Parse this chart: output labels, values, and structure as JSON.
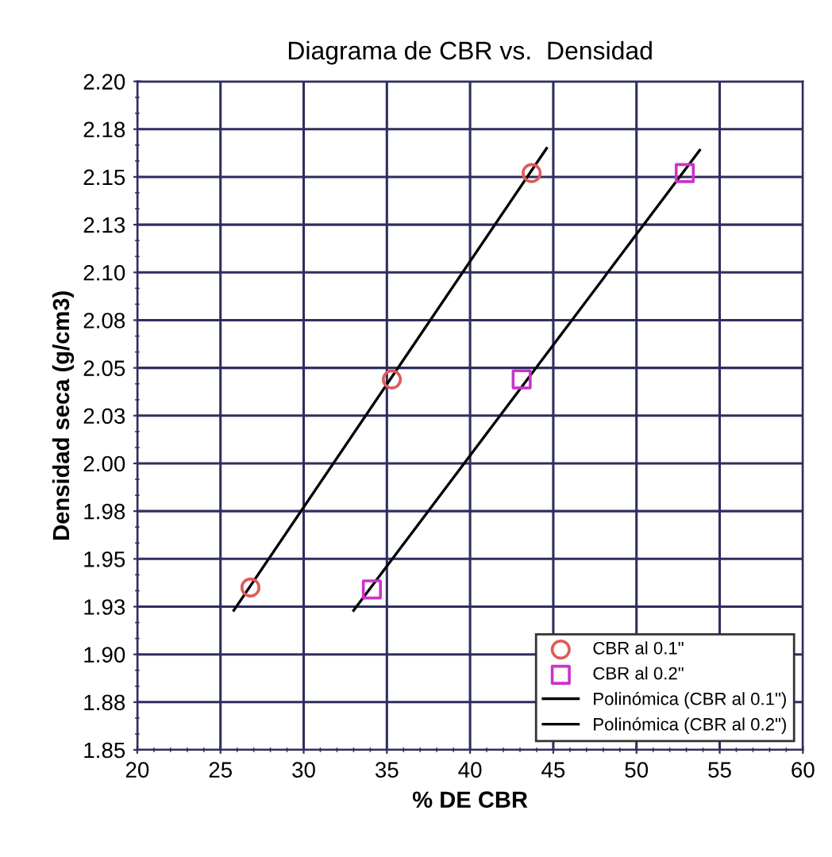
{
  "chart_data": {
    "type": "scatter",
    "title": "Diagrama de CBR vs.  Densidad",
    "xlabel": "% DE CBR",
    "ylabel": "Densidad seca (g/cm3)",
    "series": [
      {
        "name": "CBR al 0.1\"",
        "marker": "circle",
        "color": "#e05a5a",
        "x": [
          26.8,
          35.3,
          43.7
        ],
        "values": [
          1.935,
          2.044,
          2.152
        ]
      },
      {
        "name": "CBR al 0.2\"",
        "marker": "square",
        "color": "#cc33cc",
        "x": [
          34.1,
          43.1,
          52.9
        ],
        "values": [
          1.934,
          2.044,
          2.152
        ]
      },
      {
        "name": "Polinómica (CBR al 0.1\")",
        "type": "line",
        "marker": "none",
        "color": "#000000",
        "x": [
          25.8,
          44.6
        ],
        "values": [
          1.923,
          2.165
        ]
      },
      {
        "name": "Polinómica (CBR al 0.2\")",
        "type": "line",
        "marker": "none",
        "color": "#000000",
        "x": [
          33.0,
          53.8
        ],
        "values": [
          1.923,
          2.164
        ]
      }
    ],
    "xlim": [
      20,
      60
    ],
    "xticks": [
      20,
      25,
      30,
      35,
      40,
      45,
      50,
      55,
      60
    ],
    "ylim": [
      1.85,
      2.2
    ],
    "yticks": [
      1.85,
      {
        "value": 1.875,
        "label": "1.88"
      },
      {
        "value": 1.9,
        "label": "1.90"
      },
      {
        "value": 1.925,
        "label": "1.93"
      },
      1.95,
      {
        "value": 1.975,
        "label": "1.98"
      },
      {
        "value": 2.0,
        "label": "2.00"
      },
      {
        "value": 2.025,
        "label": "2.03"
      },
      2.05,
      {
        "value": 2.075,
        "label": "2.08"
      },
      {
        "value": 2.1,
        "label": "2.10"
      },
      {
        "value": 2.125,
        "label": "2.13"
      },
      2.15,
      {
        "value": 2.175,
        "label": "2.18"
      },
      {
        "value": 2.2,
        "label": "2.20"
      }
    ],
    "grid": true,
    "legend": "bottom right"
  }
}
